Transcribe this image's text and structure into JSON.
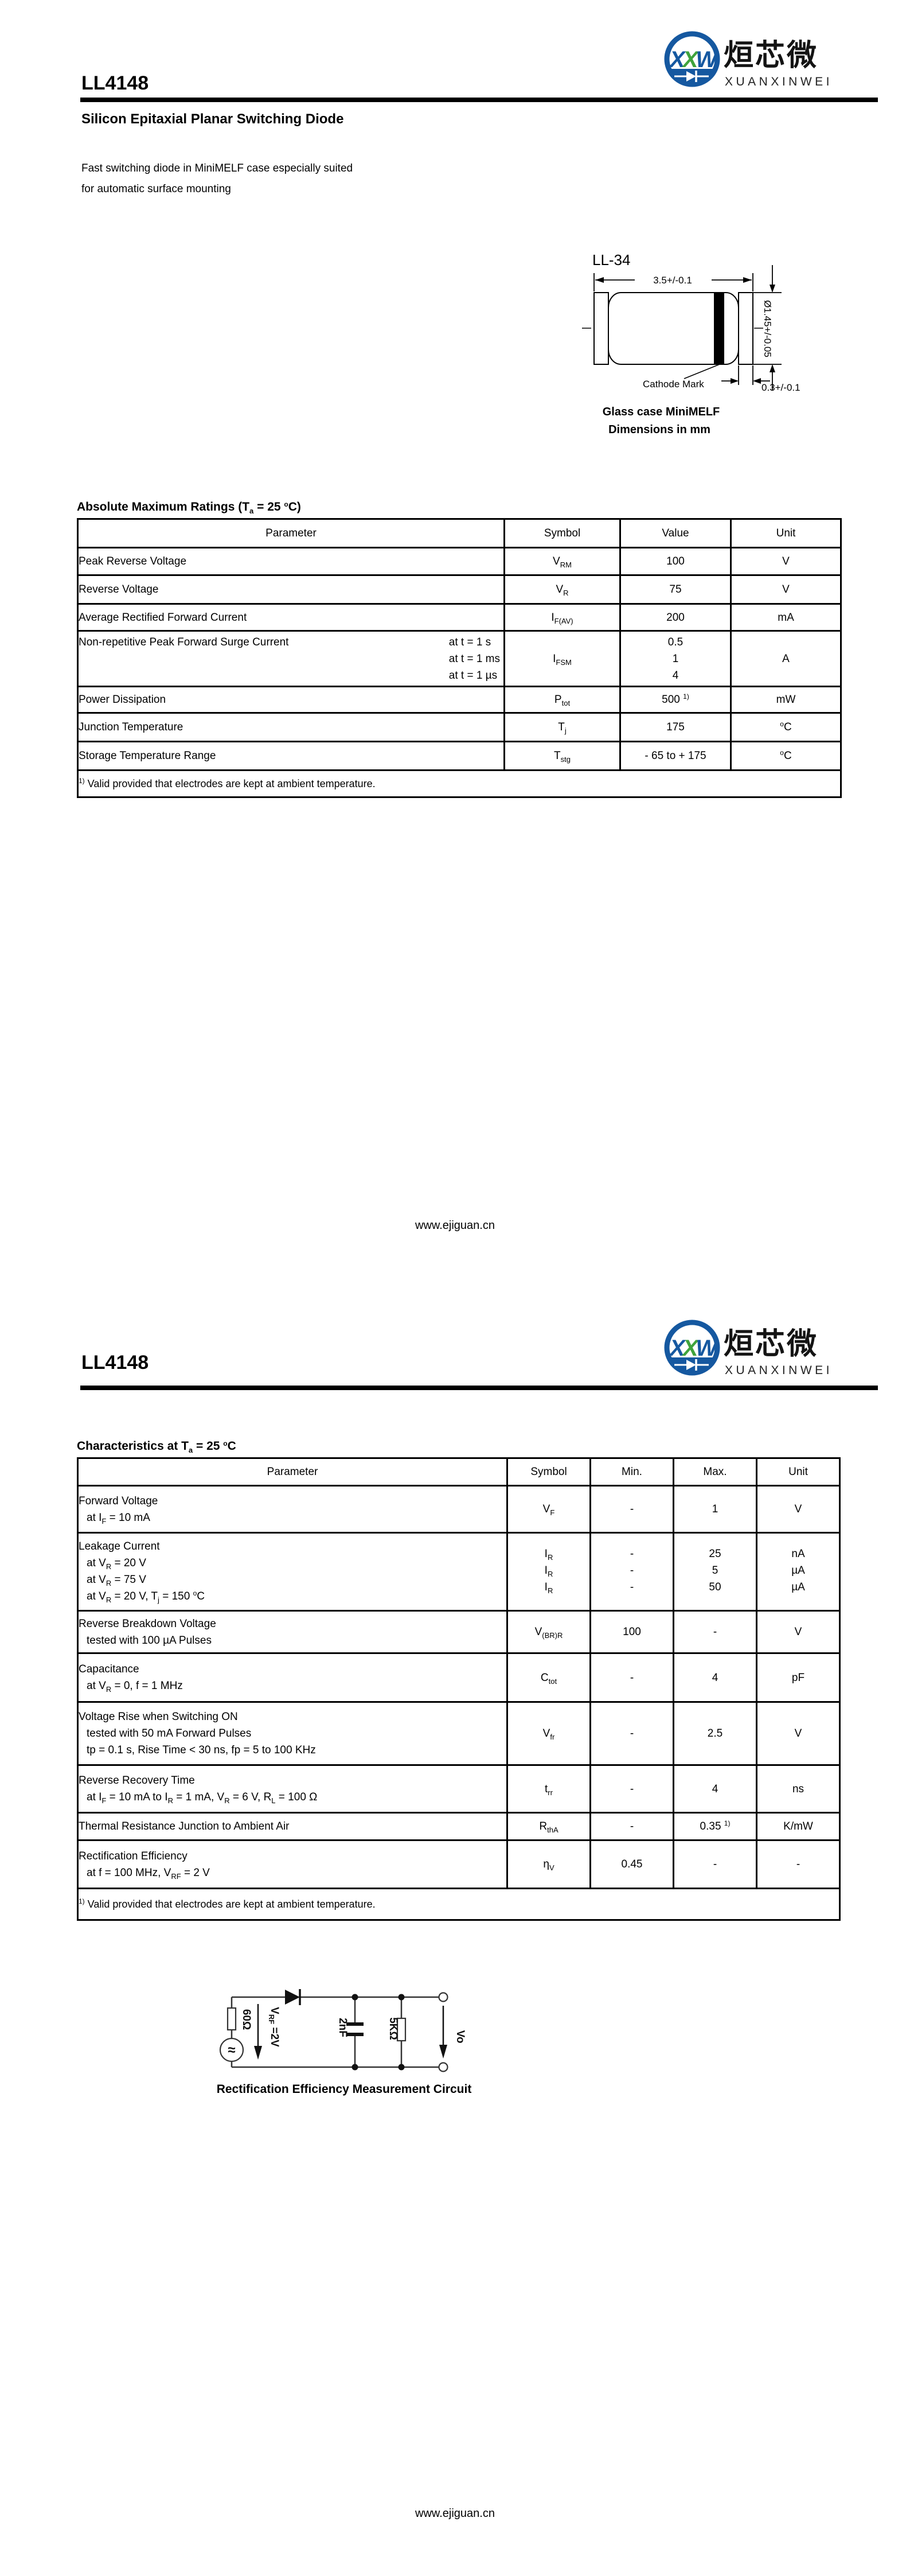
{
  "brand": {
    "monogram_x1": "X",
    "monogram_x2": "X",
    "monogram_w": "W",
    "cn": "烜芯微",
    "en": "XUANXINWEI"
  },
  "page1": {
    "part_number": "LL4148",
    "title": "Silicon Epitaxial Planar Switching Diode",
    "description_lines": [
      "Fast switching diode in MiniMELF case especially suited",
      "for automatic surface mounting"
    ],
    "package_figure": {
      "name": "LL-34",
      "dim_length": "3.5+/-0.1",
      "dim_diameter": "Ø1.45+/-0.05",
      "dim_cap": "0.3+/-0.1",
      "cathode_label": "Cathode Mark",
      "caption_line1": "Glass case MiniMELF",
      "caption_line2": "Dimensions in mm"
    },
    "ratings": {
      "heading": [
        {
          "t": "Absolute Maximum Ratings (T"
        },
        {
          "sub": "a"
        },
        {
          "t": " = 25 "
        },
        {
          "sup": "o"
        },
        {
          "t": "C)"
        }
      ],
      "columns": [
        "Parameter",
        "Symbol",
        "Value",
        "Unit"
      ],
      "rows": {
        "r1": {
          "parameter": "Peak Reverse Voltage",
          "symbol": [
            {
              "t": "V"
            },
            {
              "sub": "RM"
            }
          ],
          "value": "100",
          "unit": "V"
        },
        "r2": {
          "parameter": "Reverse Voltage",
          "symbol": [
            {
              "t": "V"
            },
            {
              "sub": "R"
            }
          ],
          "value": "75",
          "unit": "V"
        },
        "r3": {
          "parameter": "Average Rectified Forward Current",
          "symbol": [
            {
              "t": "I"
            },
            {
              "sub": "F(AV)"
            }
          ],
          "value": "200",
          "unit": "mA"
        },
        "r4": {
          "parameter": "Non-repetitive Peak Forward Surge Current",
          "conditions": [
            "at t = 1 s",
            "at t = 1 ms",
            "at t = 1 µs"
          ],
          "symbol": [
            {
              "t": "I"
            },
            {
              "sub": "FSM"
            }
          ],
          "values": [
            "0.5",
            "1",
            "4"
          ],
          "unit": "A"
        },
        "r5": {
          "parameter": "Power Dissipation",
          "symbol": [
            {
              "t": "P"
            },
            {
              "sub": "tot"
            }
          ],
          "value": [
            {
              "t": "500 "
            },
            {
              "sup": "1)"
            }
          ],
          "unit": [
            {
              "t": "m"
            },
            {
              "t": "W"
            }
          ]
        },
        "r6": {
          "parameter": "Junction Temperature",
          "symbol": [
            {
              "t": "T"
            },
            {
              "sub": "j"
            }
          ],
          "value": "175",
          "unit": [
            {
              "sup": "o"
            },
            {
              "t": "C"
            }
          ]
        },
        "r7": {
          "parameter": "Storage Temperature Range",
          "symbol": [
            {
              "t": "T"
            },
            {
              "sub": "stg"
            }
          ],
          "value": "- 65 to + 175",
          "unit": [
            {
              "sup": "o"
            },
            {
              "t": "C"
            }
          ]
        }
      },
      "footnote": [
        {
          "sup": "1)"
        },
        {
          "t": " Valid provided that electrodes are kept at ambient temperature."
        }
      ]
    },
    "footer": "www.ejiguan.cn"
  },
  "page2": {
    "part_number": "LL4148",
    "characteristics": {
      "heading": [
        {
          "t": "Characteristics at T"
        },
        {
          "sub": "a"
        },
        {
          "t": " = 25 "
        },
        {
          "sup": "o"
        },
        {
          "t": "C"
        }
      ],
      "columns": [
        "Parameter",
        "Symbol",
        "Min.",
        "Max.",
        "Unit"
      ],
      "rows": {
        "c1": {
          "line1": "Forward Voltage",
          "line2": [
            {
              "t": "at I"
            },
            {
              "sub": "F"
            },
            {
              "t": " = 10 mA"
            }
          ],
          "symbol": [
            {
              "t": "V"
            },
            {
              "sub": "F"
            }
          ],
          "min": "-",
          "max": "1",
          "unit": "V"
        },
        "c2": {
          "line1": "Leakage Current",
          "cond1": [
            {
              "t": "at V"
            },
            {
              "sub": "R"
            },
            {
              "t": " = 20 V"
            }
          ],
          "cond2": [
            {
              "t": "at V"
            },
            {
              "sub": "R"
            },
            {
              "t": " = 75 V"
            }
          ],
          "cond3": [
            {
              "t": "at V"
            },
            {
              "sub": "R"
            },
            {
              "t": " = 20 V, T"
            },
            {
              "sub": "j"
            },
            {
              "t": " = 150 "
            },
            {
              "sup": "o"
            },
            {
              "t": "C"
            }
          ],
          "symbol1": [
            {
              "t": "I"
            },
            {
              "sub": "R"
            }
          ],
          "symbol2": [
            {
              "t": "I"
            },
            {
              "sub": "R"
            }
          ],
          "symbol3": [
            {
              "t": "I"
            },
            {
              "sub": "R"
            }
          ],
          "mins": [
            "-",
            "-",
            "-"
          ],
          "maxs": [
            "25",
            "5",
            "50"
          ],
          "units": [
            "nA",
            "µA",
            "µA"
          ]
        },
        "c3": {
          "line1": "Reverse Breakdown Voltage",
          "line2": [
            {
              "t": "tested with 100 µA Pulses"
            }
          ],
          "symbol": [
            {
              "t": "V"
            },
            {
              "sub": "(BR)R"
            }
          ],
          "min": "100",
          "max": "-",
          "unit": "V"
        },
        "c4": {
          "line1": "Capacitance",
          "line2": [
            {
              "t": "at V"
            },
            {
              "sub": "R"
            },
            {
              "t": " = 0, f = 1 MHz"
            }
          ],
          "symbol": [
            {
              "t": "C"
            },
            {
              "sub": "tot"
            }
          ],
          "min": "-",
          "max": "4",
          "unit": "pF"
        },
        "c5": {
          "line1": "Voltage Rise when Switching ON",
          "line2": [
            {
              "t": "tested with 50 mA Forward Pulses"
            }
          ],
          "line3": [
            {
              "t": "tp = 0.1 s, Rise Time < 30 ns, fp = 5 to 100 KHz"
            }
          ],
          "symbol": [
            {
              "t": "V"
            },
            {
              "sub": "fr"
            }
          ],
          "min": "-",
          "max": "2.5",
          "unit": "V"
        },
        "c6": {
          "line1": "Reverse Recovery Time",
          "line2": [
            {
              "t": "at I"
            },
            {
              "sub": "F"
            },
            {
              "t": " = 10 mA to I"
            },
            {
              "sub": "R"
            },
            {
              "t": " = 1 mA, V"
            },
            {
              "sub": "R"
            },
            {
              "t": " = 6 V, R"
            },
            {
              "sub": "L"
            },
            {
              "t": " = 100 Ω"
            }
          ],
          "symbol": [
            {
              "t": "t"
            },
            {
              "sub": "rr"
            }
          ],
          "min": "-",
          "max": "4",
          "unit": "ns"
        },
        "c7": {
          "line1": "Thermal Resistance Junction to Ambient Air",
          "symbol": [
            {
              "t": "R"
            },
            {
              "sub": "thA"
            }
          ],
          "min": "-",
          "max": [
            {
              "t": "0.35 "
            },
            {
              "sup": "1)"
            }
          ],
          "unit": "K/mW"
        },
        "c8": {
          "line1": "Rectification Efficiency",
          "line2": [
            {
              "t": "at f = 100 MHz, V"
            },
            {
              "sub": "RF"
            },
            {
              "t": " = 2 V"
            }
          ],
          "symbol": [
            {
              "t": "η"
            },
            {
              "sub": "V"
            }
          ],
          "min": "0.45",
          "max": "-",
          "unit": "-"
        }
      },
      "footnote": [
        {
          "sup": "1)"
        },
        {
          "t": " Valid provided that electrodes are kept at ambient temperature."
        }
      ]
    },
    "circuit": {
      "source_resistor": "60Ω",
      "vrf_base": "V",
      "vrf_sub": "RF",
      "vrf_rest": " =2V",
      "capacitor": "2nF",
      "load_resistor": "5KΩ",
      "output": "Vo",
      "caption": "Rectification Efficiency Measurement Circuit"
    },
    "footer": "www.ejiguan.cn"
  }
}
